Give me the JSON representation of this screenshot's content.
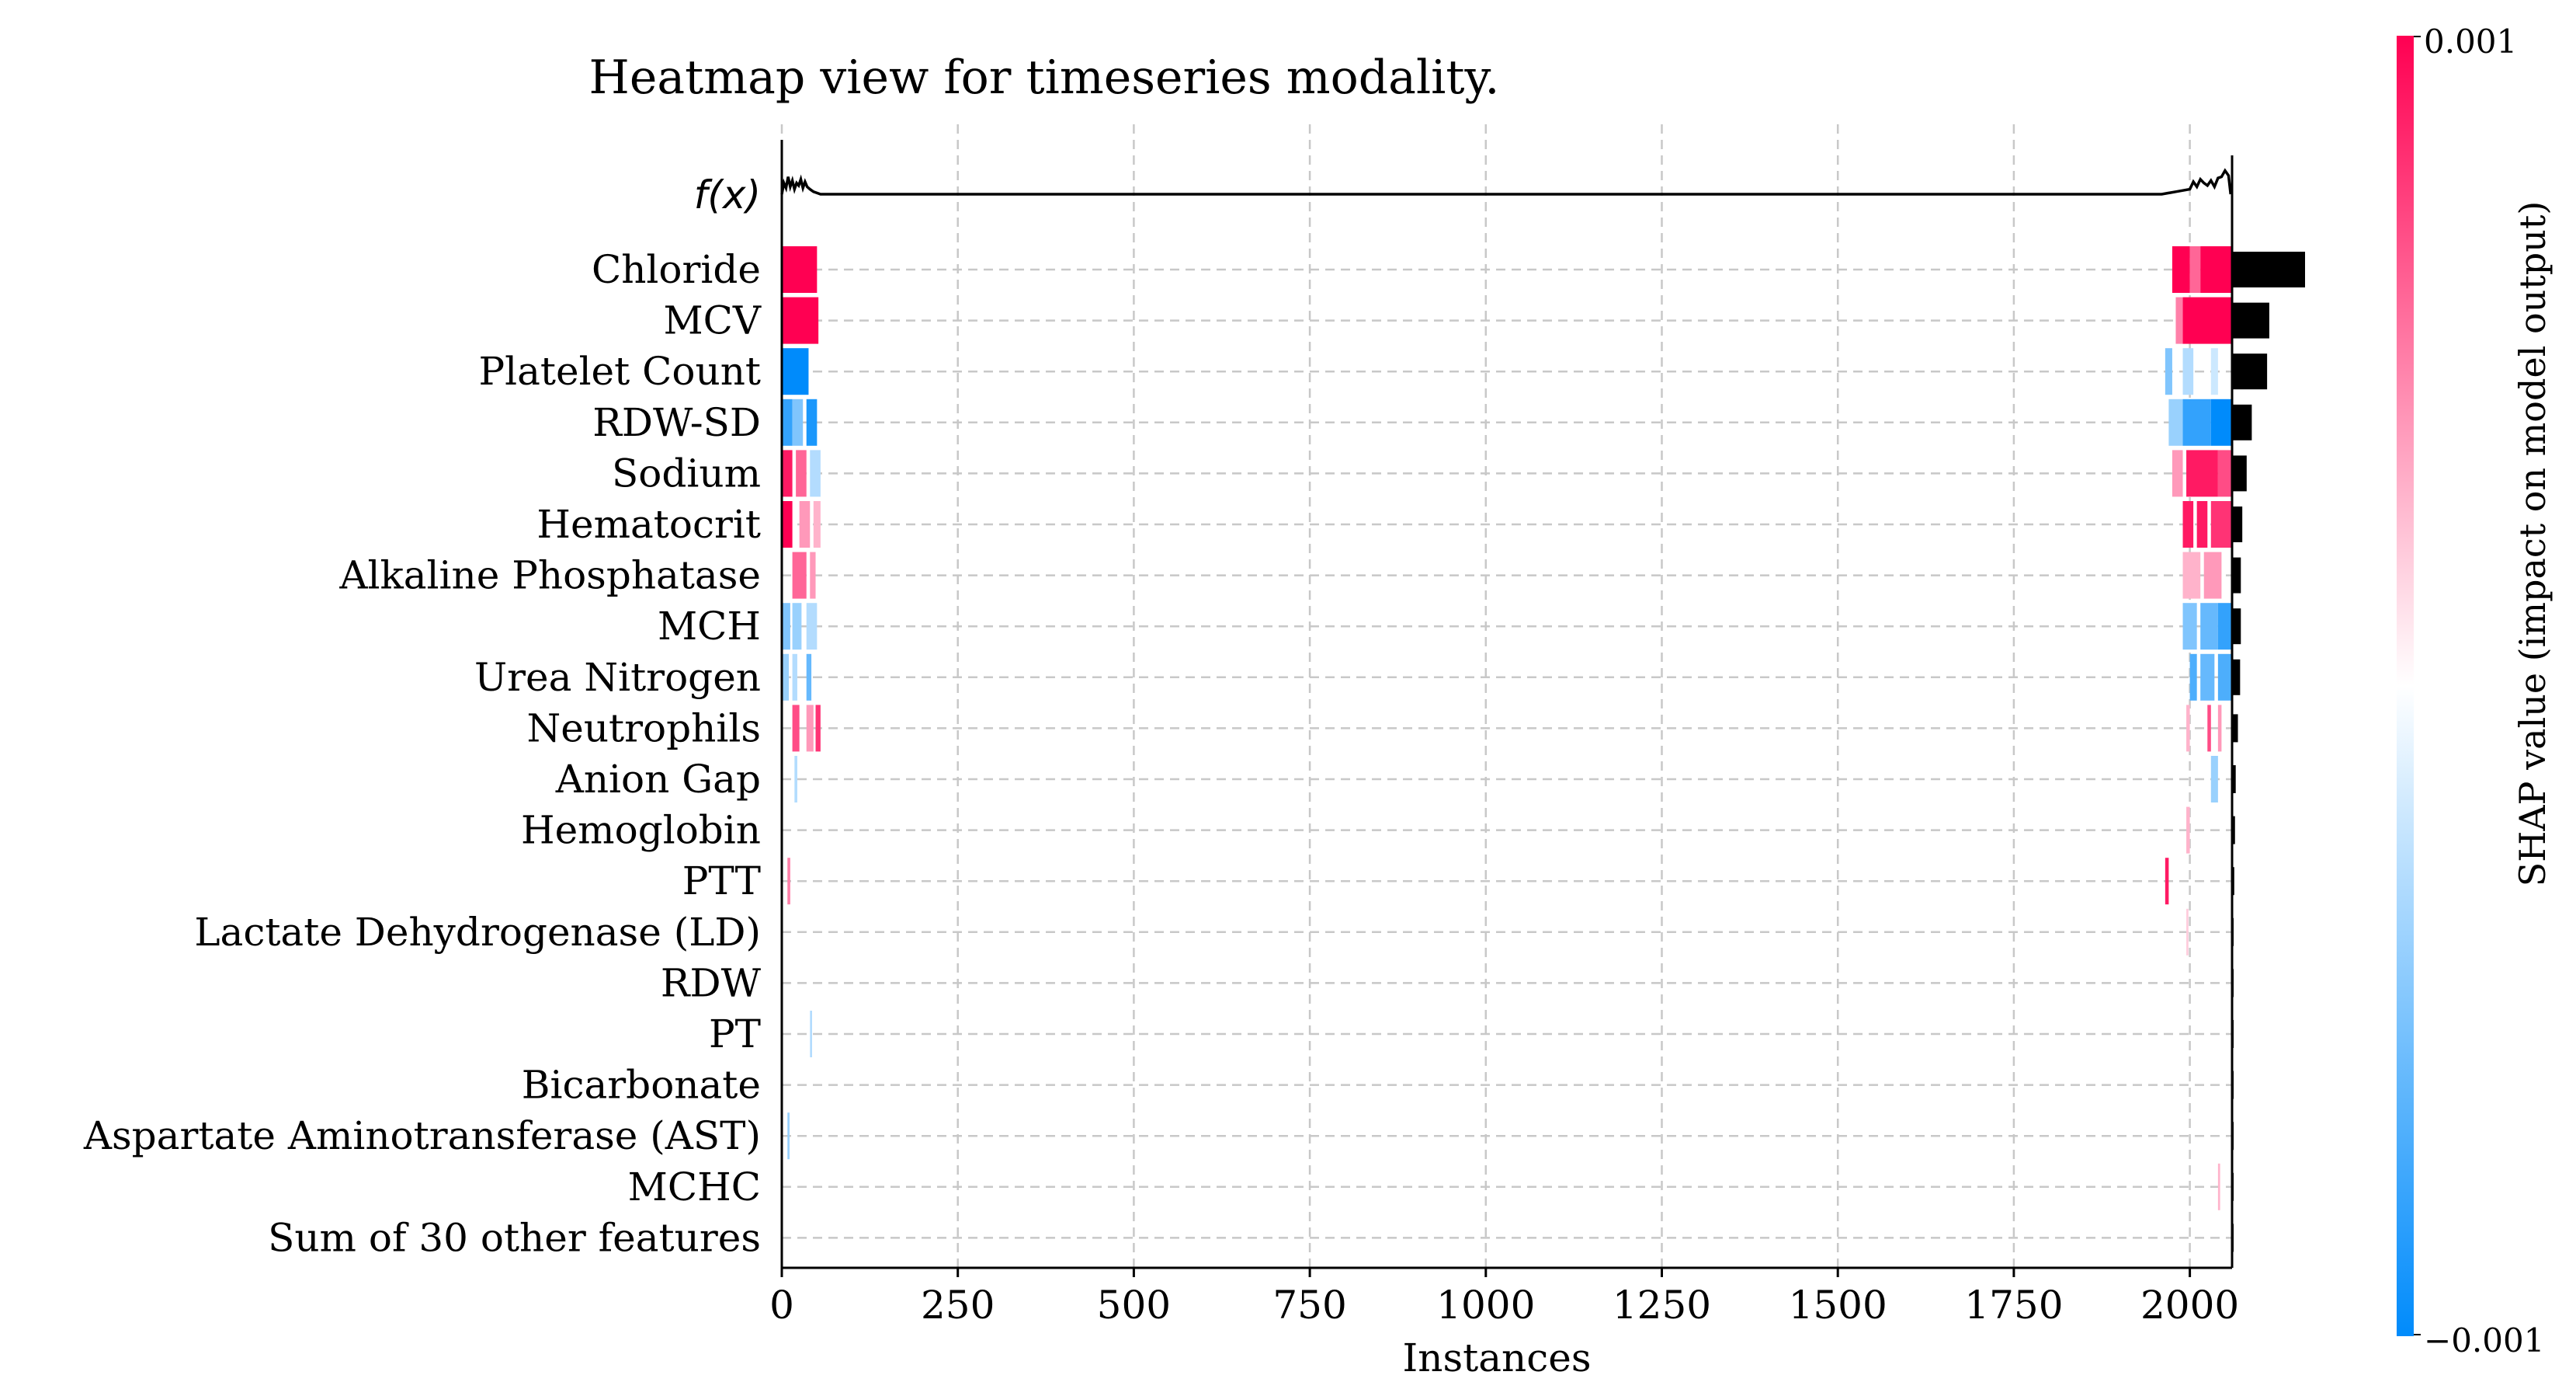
{
  "chart_data": {
    "type": "heatmap",
    "title": "Heatmap view for timeseries modality.",
    "xlabel": "Instances",
    "fx_label": "f(x)",
    "xlim": [
      0,
      2060
    ],
    "xticks": [
      0,
      250,
      500,
      750,
      1000,
      1250,
      1500,
      1750,
      2000
    ],
    "grid": true,
    "colorbar": {
      "label": "SHAP value (impact on model output)",
      "max_label": "0.001",
      "min_label": "−0.001",
      "vmin": -0.001,
      "vmax": 0.001,
      "colors": {
        "negative": "#008bfb",
        "mid": "#ffffff",
        "positive": "#ff0052"
      }
    },
    "features": [
      "Chloride",
      "MCV",
      "Platelet Count",
      "RDW-SD",
      "Sodium",
      "Hematocrit",
      "Alkaline Phosphatase",
      "MCH",
      "Urea Nitrogen",
      "Neutrophils",
      "Anion Gap",
      "Hemoglobin",
      "PTT",
      "Lactate Dehydrogenase (LD)",
      "RDW",
      "PT",
      "Bicarbonate",
      "Aspartate Aminotransferase (AST)",
      "MCHC",
      "Sum of 30 other features"
    ],
    "mean_abs_importance": [
      1.0,
      0.51,
      0.48,
      0.27,
      0.2,
      0.14,
      0.12,
      0.12,
      0.11,
      0.08,
      0.05,
      0.04,
      0.03,
      0.02,
      0.02,
      0.02,
      0.02,
      0.02,
      0.02,
      0.02
    ],
    "heat_segments": [
      {
        "feature": 0,
        "x0": 0,
        "x1": 50,
        "value": 0.001
      },
      {
        "feature": 0,
        "x0": 1975,
        "x1": 2000,
        "value": 0.001
      },
      {
        "feature": 0,
        "x0": 2000,
        "x1": 2015,
        "value": 0.0006
      },
      {
        "feature": 0,
        "x0": 2015,
        "x1": 2060,
        "value": 0.001
      },
      {
        "feature": 1,
        "x0": 0,
        "x1": 52,
        "value": 0.001
      },
      {
        "feature": 1,
        "x0": 1980,
        "x1": 1990,
        "value": 0.0005
      },
      {
        "feature": 1,
        "x0": 1990,
        "x1": 2060,
        "value": 0.001
      },
      {
        "feature": 2,
        "x0": 0,
        "x1": 38,
        "value": -0.001
      },
      {
        "feature": 2,
        "x0": 1965,
        "x1": 1975,
        "value": -0.0005
      },
      {
        "feature": 2,
        "x0": 1990,
        "x1": 2005,
        "value": -0.0003
      },
      {
        "feature": 2,
        "x0": 2030,
        "x1": 2040,
        "value": -0.0002
      },
      {
        "feature": 3,
        "x0": 0,
        "x1": 15,
        "value": -0.0008
      },
      {
        "feature": 3,
        "x0": 15,
        "x1": 30,
        "value": -0.0005
      },
      {
        "feature": 3,
        "x0": 35,
        "x1": 50,
        "value": -0.0009
      },
      {
        "feature": 3,
        "x0": 1970,
        "x1": 1990,
        "value": -0.0004
      },
      {
        "feature": 3,
        "x0": 1990,
        "x1": 2030,
        "value": -0.0008
      },
      {
        "feature": 3,
        "x0": 2030,
        "x1": 2060,
        "value": -0.001
      },
      {
        "feature": 4,
        "x0": 0,
        "x1": 15,
        "value": 0.0009
      },
      {
        "feature": 4,
        "x0": 20,
        "x1": 35,
        "value": 0.0006
      },
      {
        "feature": 4,
        "x0": 40,
        "x1": 55,
        "value": -0.0003
      },
      {
        "feature": 4,
        "x0": 1975,
        "x1": 1990,
        "value": 0.0004
      },
      {
        "feature": 4,
        "x0": 1995,
        "x1": 2040,
        "value": 0.0009
      },
      {
        "feature": 4,
        "x0": 2040,
        "x1": 2060,
        "value": 0.0007
      },
      {
        "feature": 5,
        "x0": 0,
        "x1": 15,
        "value": 0.001
      },
      {
        "feature": 5,
        "x0": 25,
        "x1": 40,
        "value": 0.0004
      },
      {
        "feature": 5,
        "x0": 45,
        "x1": 55,
        "value": 0.0003
      },
      {
        "feature": 5,
        "x0": 1990,
        "x1": 2005,
        "value": 0.0009
      },
      {
        "feature": 5,
        "x0": 2010,
        "x1": 2025,
        "value": 0.0009
      },
      {
        "feature": 5,
        "x0": 2030,
        "x1": 2060,
        "value": 0.0008
      },
      {
        "feature": 6,
        "x0": 15,
        "x1": 35,
        "value": 0.0006
      },
      {
        "feature": 6,
        "x0": 40,
        "x1": 48,
        "value": 0.0004
      },
      {
        "feature": 6,
        "x0": 1990,
        "x1": 2015,
        "value": 0.0003
      },
      {
        "feature": 6,
        "x0": 2020,
        "x1": 2045,
        "value": 0.0004
      },
      {
        "feature": 7,
        "x0": 0,
        "x1": 12,
        "value": -0.0005
      },
      {
        "feature": 7,
        "x0": 15,
        "x1": 28,
        "value": -0.0004
      },
      {
        "feature": 7,
        "x0": 35,
        "x1": 50,
        "value": -0.0003
      },
      {
        "feature": 7,
        "x0": 1990,
        "x1": 2010,
        "value": -0.0005
      },
      {
        "feature": 7,
        "x0": 2015,
        "x1": 2040,
        "value": -0.0006
      },
      {
        "feature": 7,
        "x0": 2040,
        "x1": 2060,
        "value": -0.0008
      },
      {
        "feature": 8,
        "x0": 0,
        "x1": 10,
        "value": -0.0004
      },
      {
        "feature": 8,
        "x0": 15,
        "x1": 22,
        "value": -0.0003
      },
      {
        "feature": 8,
        "x0": 35,
        "x1": 42,
        "value": -0.0006
      },
      {
        "feature": 8,
        "x0": 2000,
        "x1": 2010,
        "value": -0.0007
      },
      {
        "feature": 8,
        "x0": 2015,
        "x1": 2035,
        "value": -0.0006
      },
      {
        "feature": 8,
        "x0": 2040,
        "x1": 2060,
        "value": -0.0007
      },
      {
        "feature": 9,
        "x0": 15,
        "x1": 25,
        "value": 0.0007
      },
      {
        "feature": 9,
        "x0": 35,
        "x1": 45,
        "value": 0.0004
      },
      {
        "feature": 9,
        "x0": 48,
        "x1": 55,
        "value": 0.0008
      },
      {
        "feature": 9,
        "x0": 1995,
        "x1": 2000,
        "value": 0.0003
      },
      {
        "feature": 9,
        "x0": 2025,
        "x1": 2030,
        "value": 0.0007
      },
      {
        "feature": 9,
        "x0": 2040,
        "x1": 2045,
        "value": 0.0004
      },
      {
        "feature": 10,
        "x0": 18,
        "x1": 22,
        "value": -0.0003
      },
      {
        "feature": 10,
        "x0": 2030,
        "x1": 2040,
        "value": -0.0004
      },
      {
        "feature": 11,
        "x0": 1995,
        "x1": 2000,
        "value": 0.0003
      },
      {
        "feature": 12,
        "x0": 8,
        "x1": 12,
        "value": 0.0005
      },
      {
        "feature": 12,
        "x0": 1965,
        "x1": 1970,
        "value": 0.0009
      },
      {
        "feature": 13,
        "x0": 1995,
        "x1": 1998,
        "value": 0.0002
      },
      {
        "feature": 15,
        "x0": 40,
        "x1": 43,
        "value": -0.0003
      },
      {
        "feature": 17,
        "x0": 8,
        "x1": 11,
        "value": -0.0004
      },
      {
        "feature": 18,
        "x0": 2040,
        "x1": 2043,
        "value": 0.0003
      }
    ],
    "fx_series": {
      "x": [
        0,
        3,
        6,
        9,
        12,
        15,
        18,
        21,
        24,
        27,
        30,
        33,
        36,
        40,
        45,
        50,
        55,
        60,
        1960,
        1970,
        1980,
        1990,
        2000,
        2005,
        2010,
        2015,
        2020,
        2025,
        2030,
        2035,
        2040,
        2045,
        2050,
        2055,
        2058
      ],
      "y": [
        0.0,
        0.45,
        0.25,
        0.7,
        0.3,
        0.55,
        0.2,
        0.45,
        0.35,
        0.6,
        0.25,
        0.5,
        0.3,
        0.2,
        0.1,
        0.05,
        0.0,
        0.0,
        0.0,
        0.05,
        0.1,
        0.15,
        0.2,
        0.5,
        0.3,
        0.6,
        0.45,
        0.35,
        0.55,
        0.3,
        0.65,
        0.7,
        0.95,
        0.75,
        0.0
      ]
    }
  }
}
